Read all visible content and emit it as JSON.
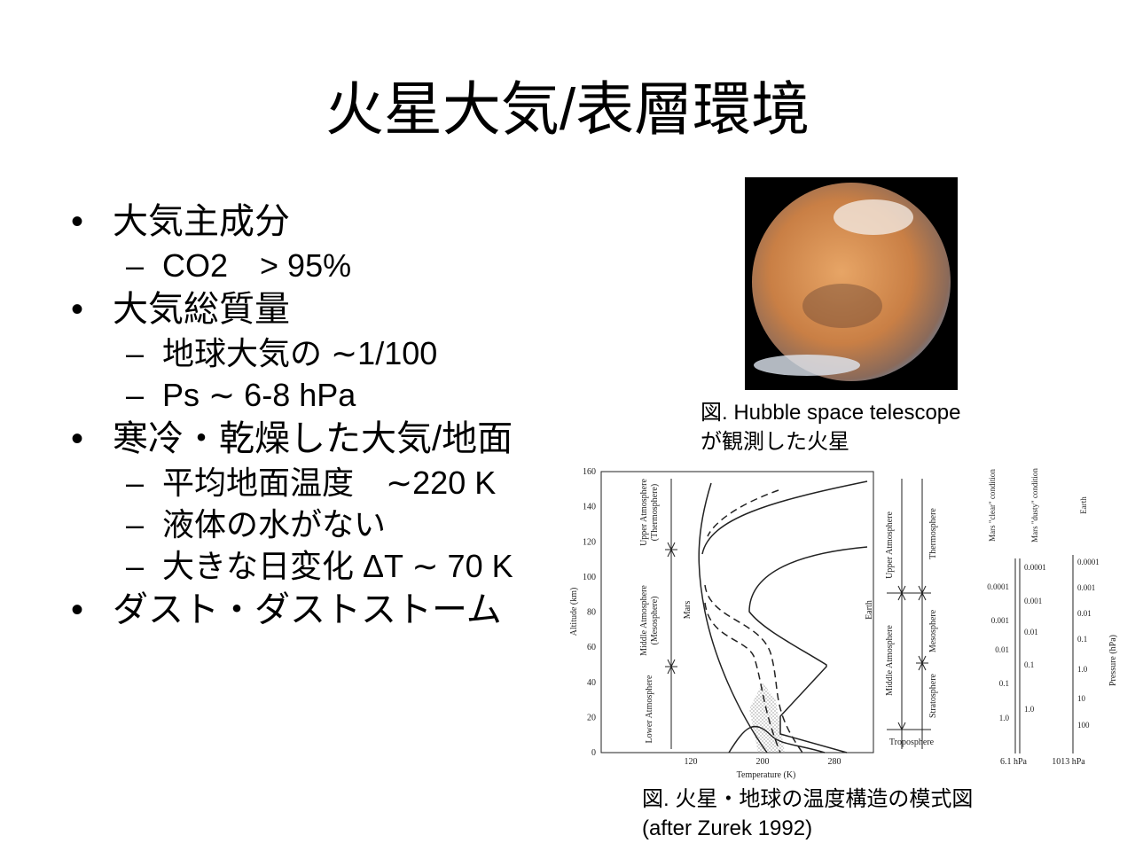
{
  "title": "火星大気/表層環境",
  "bullets": [
    {
      "text": "大気主成分",
      "sub": [
        "CO2　> 95%"
      ]
    },
    {
      "text": "大気総質量",
      "sub": [
        "地球大気の ∼1/100",
        "Ps ∼ 6-8 hPa"
      ]
    },
    {
      "text": "寒冷・乾燥した大気/地面",
      "sub": [
        "平均地面温度　∼220 K",
        "液体の水がない",
        "大きな日変化 ΔT ∼ 70 K"
      ]
    },
    {
      "text": "ダスト・ダストストーム"
    }
  ],
  "mars_caption": [
    "図. Hubble space telescope",
    "が観測した火星"
  ],
  "figure": {
    "y_label": "Altitude (km)",
    "y_ticks": [
      "0",
      "20",
      "40",
      "60",
      "80",
      "100",
      "120",
      "140",
      "160"
    ],
    "x_ticks": [
      "120",
      "200",
      "280"
    ],
    "x_label": "Temperature (K)",
    "mars_layers": [
      [
        "Upper Atmosphere",
        "(Thermosphere)"
      ],
      [
        "Middle Atmosphere",
        "(Mesosphere)"
      ],
      [
        "Lower Atmosphere"
      ]
    ],
    "mars_label": "Mars",
    "earth_label": "Earth",
    "earth_layers": [
      "Upper Atmosphere",
      "Middle Atmosphere",
      "Thermosphere",
      "Mesosphere",
      "Stratosphere",
      "Troposphere"
    ],
    "pressure_columns": [
      {
        "title": "Mars \"clear\" condition",
        "ticks": [
          "0.0001",
          "0.001",
          "0.01",
          "0.1",
          "1.0"
        ]
      },
      {
        "title": "Mars \"dusty\" condition",
        "ticks": [
          "0.0001",
          "0.001",
          "0.01",
          "0.1",
          "1.0"
        ]
      },
      {
        "title": "Earth",
        "ticks": [
          "0.0001",
          "0.001",
          "0.01",
          "0.1",
          "1.0",
          "10",
          "100"
        ]
      }
    ],
    "pressure_label": "Pressure (hPa)",
    "surface_pressures": [
      "6.1 hPa",
      "1013 hPa"
    ]
  },
  "figure_caption": [
    "図. 火星・地球の温度構造の模式図",
    "(after Zurek 1992)"
  ]
}
